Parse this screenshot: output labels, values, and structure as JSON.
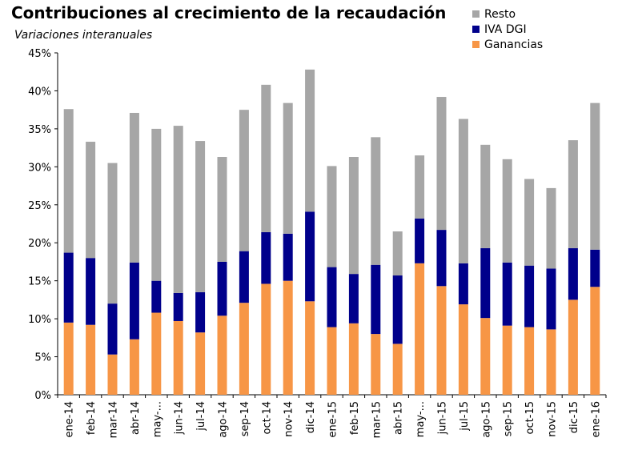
{
  "title": "Contribuciones al crecimiento de la recaudación",
  "subtitle": "Variaciones interanuales",
  "colors": {
    "resto": "#a6a6a6",
    "iva": "#00008b",
    "ganancias": "#f79646"
  },
  "legend": [
    {
      "label": "Resto",
      "color": "#a6a6a6"
    },
    {
      "label": "IVA DGI",
      "color": "#00008b"
    },
    {
      "label": "Ganancias",
      "color": "#f79646"
    }
  ],
  "chart_data": {
    "type": "bar",
    "stacked": true,
    "title": "Contribuciones al crecimiento de la recaudación",
    "subtitle": "Variaciones interanuales",
    "xlabel": "",
    "ylabel": "",
    "ylim": [
      0,
      45
    ],
    "yticks": [
      "0%",
      "5%",
      "10%",
      "15%",
      "20%",
      "25%",
      "30%",
      "35%",
      "40%",
      "45%"
    ],
    "grid": false,
    "legend_position": "top-right",
    "categories": [
      "ene-14",
      "feb-14",
      "mar-14",
      "abr-14",
      "may-...",
      "jun-14",
      "jul-14",
      "ago-14",
      "sep-14",
      "oct-14",
      "nov-14",
      "dic-14",
      "ene-15",
      "feb-15",
      "mar-15",
      "abr-15",
      "may-...",
      "jun-15",
      "jul-15",
      "ago-15",
      "sep-15",
      "oct-15",
      "nov-15",
      "dic-15",
      "ene-16"
    ],
    "series": [
      {
        "name": "Ganancias",
        "color": "#f79646",
        "values": [
          9.5,
          9.2,
          5.3,
          7.3,
          10.8,
          9.7,
          8.2,
          10.4,
          12.1,
          14.6,
          15.0,
          12.3,
          8.9,
          9.4,
          8.0,
          6.7,
          17.3,
          14.3,
          11.9,
          10.1,
          9.1,
          8.9,
          8.6,
          12.5,
          14.2
        ]
      },
      {
        "name": "IVA DGI",
        "color": "#00008b",
        "values": [
          9.2,
          8.8,
          6.7,
          10.1,
          4.2,
          3.7,
          5.3,
          7.1,
          6.8,
          6.8,
          6.2,
          11.8,
          7.9,
          6.5,
          9.1,
          9.0,
          5.9,
          7.4,
          5.4,
          9.2,
          8.3,
          8.1,
          8.0,
          6.8,
          4.9
        ]
      },
      {
        "name": "Resto",
        "color": "#a6a6a6",
        "values": [
          18.9,
          15.3,
          18.5,
          19.7,
          20.0,
          22.0,
          19.9,
          13.8,
          18.6,
          19.4,
          17.2,
          18.7,
          13.3,
          15.4,
          16.8,
          5.8,
          8.3,
          17.5,
          19.0,
          13.6,
          13.6,
          11.4,
          10.6,
          14.2,
          19.3
        ]
      }
    ]
  }
}
